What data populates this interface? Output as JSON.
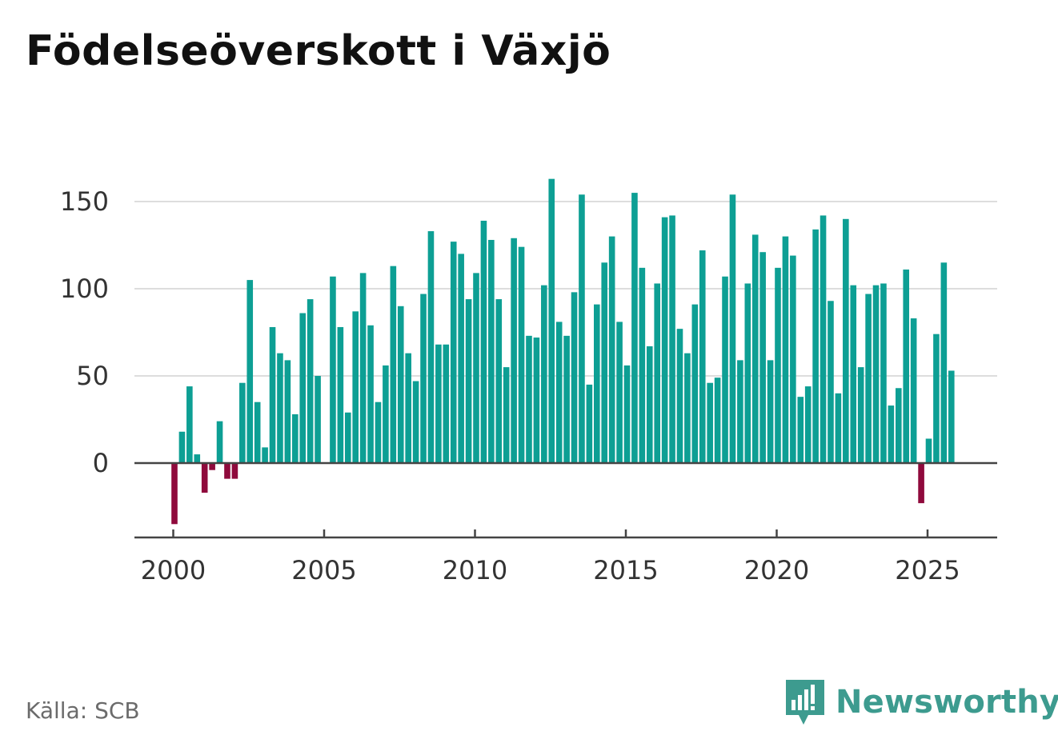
{
  "title": "Födelseöverskott i Växjö",
  "source": "Källa: SCB",
  "brand": "Newsworthy",
  "colors": {
    "positive": "#0d9f94",
    "negative": "#8f0a3c",
    "brand": "#3d9b8f"
  },
  "chart_data": {
    "type": "bar",
    "title": "Födelseöverskott i Växjö",
    "xlabel": "",
    "ylabel": "",
    "ylim": [
      -35,
      165
    ],
    "yticks": [
      0,
      50,
      100,
      150
    ],
    "xticks": [
      2000,
      2005,
      2010,
      2015,
      2020,
      2025
    ],
    "xlim": [
      1998.7,
      2027.25
    ],
    "grid": true,
    "start": 2000.0,
    "step": 0.25,
    "values": [
      -35,
      18,
      44,
      5,
      -17,
      -4,
      24,
      -9,
      -9,
      46,
      105,
      35,
      9,
      78,
      63,
      59,
      28,
      86,
      94,
      50,
      null,
      107,
      78,
      29,
      87,
      109,
      79,
      35,
      56,
      113,
      90,
      63,
      47,
      97,
      133,
      68,
      68,
      127,
      120,
      94,
      109,
      139,
      128,
      94,
      55,
      129,
      124,
      73,
      72,
      102,
      163,
      81,
      73,
      98,
      154,
      45,
      91,
      115,
      130,
      81,
      56,
      155,
      112,
      67,
      103,
      141,
      142,
      77,
      63,
      91,
      122,
      46,
      49,
      107,
      154,
      59,
      103,
      131,
      121,
      59,
      112,
      130,
      119,
      38,
      44,
      134,
      142,
      93,
      40,
      140,
      102,
      55,
      97,
      102,
      103,
      33,
      43,
      111,
      83,
      -23,
      14,
      74,
      115,
      53
    ]
  }
}
